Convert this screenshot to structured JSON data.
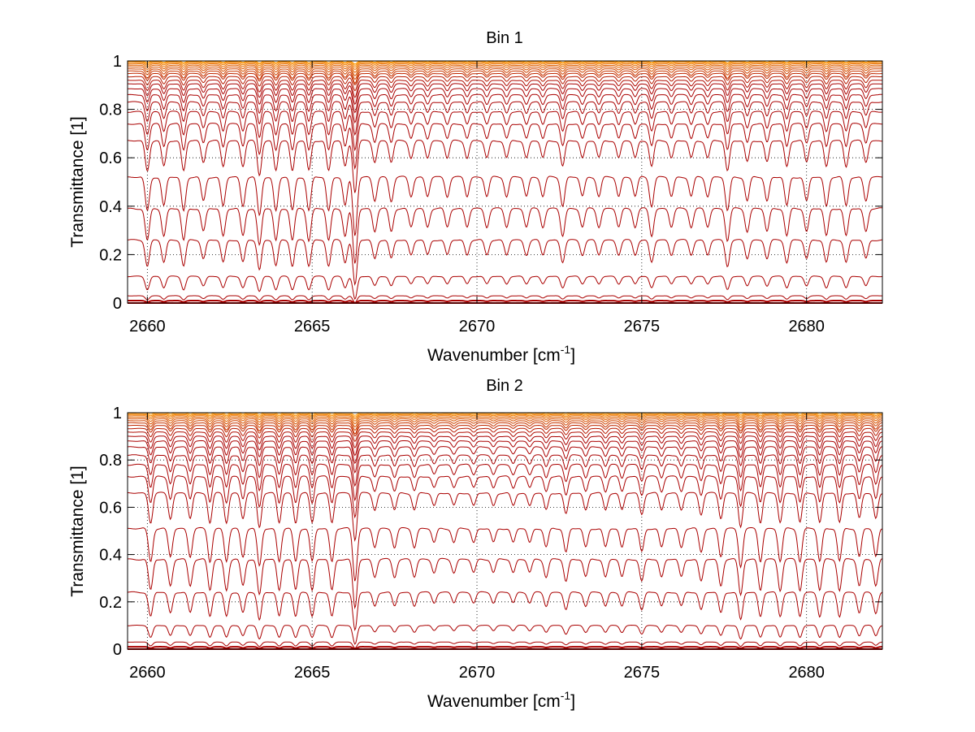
{
  "chart_data": [
    {
      "type": "line",
      "title": "Bin 1",
      "xlabel": "Wavenumber [cm",
      "xlabel_sup": "-1",
      "xlabel_close": "]",
      "ylabel": "Transmittance [1]",
      "xlim": [
        2659.4,
        2682.3
      ],
      "ylim": [
        0,
        1
      ],
      "xticks": [
        2660,
        2665,
        2670,
        2675,
        2680
      ],
      "xtick_labels": [
        "2660",
        "2665",
        "2670",
        "2675",
        "2680"
      ],
      "yticks": [
        0,
        0.2,
        0.4,
        0.6,
        0.8,
        1
      ],
      "ytick_labels": [
        "0",
        "0.2",
        "0.4",
        "0.6",
        "0.8",
        "1"
      ],
      "grid": "dotted",
      "series_description": "family of transmittance spectra, deep red (optically thick) to orange/yellow near 1",
      "series_baselines": [
        0.0,
        0.01,
        0.03,
        0.11,
        0.26,
        0.39,
        0.52,
        0.67,
        0.74,
        0.79,
        0.83,
        0.86,
        0.885,
        0.905,
        0.92,
        0.935,
        0.948,
        0.958,
        0.967,
        0.975,
        0.982,
        0.988,
        0.993,
        0.997,
        1.0
      ],
      "absorption_lines": [
        {
          "x": 2660.0,
          "depth": 0.35
        },
        {
          "x": 2660.5,
          "depth": 0.3
        },
        {
          "x": 2661.1,
          "depth": 0.35
        },
        {
          "x": 2661.7,
          "depth": 0.25
        },
        {
          "x": 2662.3,
          "depth": 0.3
        },
        {
          "x": 2662.9,
          "depth": 0.3
        },
        {
          "x": 2663.4,
          "depth": 0.4
        },
        {
          "x": 2663.9,
          "depth": 0.35
        },
        {
          "x": 2664.4,
          "depth": 0.35
        },
        {
          "x": 2664.9,
          "depth": 0.35
        },
        {
          "x": 2665.5,
          "depth": 0.35
        },
        {
          "x": 2666.0,
          "depth": 0.3
        },
        {
          "x": 2666.3,
          "depth": 0.6
        },
        {
          "x": 2666.9,
          "depth": 0.25
        },
        {
          "x": 2667.4,
          "depth": 0.25
        },
        {
          "x": 2668.0,
          "depth": 0.2
        },
        {
          "x": 2668.5,
          "depth": 0.2
        },
        {
          "x": 2669.1,
          "depth": 0.2
        },
        {
          "x": 2669.7,
          "depth": 0.2
        },
        {
          "x": 2670.3,
          "depth": 0.2
        },
        {
          "x": 2670.9,
          "depth": 0.2
        },
        {
          "x": 2671.5,
          "depth": 0.2
        },
        {
          "x": 2672.0,
          "depth": 0.2
        },
        {
          "x": 2672.6,
          "depth": 0.3
        },
        {
          "x": 2673.2,
          "depth": 0.2
        },
        {
          "x": 2673.7,
          "depth": 0.2
        },
        {
          "x": 2674.3,
          "depth": 0.2
        },
        {
          "x": 2674.8,
          "depth": 0.2
        },
        {
          "x": 2675.3,
          "depth": 0.3
        },
        {
          "x": 2675.9,
          "depth": 0.2
        },
        {
          "x": 2676.5,
          "depth": 0.2
        },
        {
          "x": 2677.0,
          "depth": 0.2
        },
        {
          "x": 2677.6,
          "depth": 0.35
        },
        {
          "x": 2678.2,
          "depth": 0.25
        },
        {
          "x": 2678.8,
          "depth": 0.25
        },
        {
          "x": 2679.4,
          "depth": 0.3
        },
        {
          "x": 2680.0,
          "depth": 0.25
        },
        {
          "x": 2680.6,
          "depth": 0.3
        },
        {
          "x": 2681.2,
          "depth": 0.3
        },
        {
          "x": 2681.8,
          "depth": 0.25
        }
      ],
      "color_dark": "#aa0000",
      "color_light": "#ff9900"
    },
    {
      "type": "line",
      "title": "Bin 2",
      "xlabel": "Wavenumber [cm",
      "xlabel_sup": "-1",
      "xlabel_close": "]",
      "ylabel": "Transmittance [1]",
      "xlim": [
        2659.4,
        2682.3
      ],
      "ylim": [
        0,
        1
      ],
      "xticks": [
        2660,
        2665,
        2670,
        2675,
        2680
      ],
      "xtick_labels": [
        "2660",
        "2665",
        "2670",
        "2675",
        "2680"
      ],
      "yticks": [
        0,
        0.2,
        0.4,
        0.6,
        0.8,
        1
      ],
      "ytick_labels": [
        "0",
        "0.2",
        "0.4",
        "0.6",
        "0.8",
        "1"
      ],
      "grid": "dotted",
      "series_description": "family of transmittance spectra, deep red (optically thick) to orange/yellow near 1",
      "series_baselines": [
        0.0,
        0.01,
        0.03,
        0.1,
        0.24,
        0.38,
        0.51,
        0.66,
        0.73,
        0.78,
        0.82,
        0.855,
        0.88,
        0.9,
        0.918,
        0.933,
        0.946,
        0.957,
        0.966,
        0.974,
        0.981,
        0.987,
        0.992,
        0.996,
        1.0
      ],
      "absorption_lines": [
        {
          "x": 2660.1,
          "depth": 0.35
        },
        {
          "x": 2660.7,
          "depth": 0.3
        },
        {
          "x": 2661.3,
          "depth": 0.3
        },
        {
          "x": 2661.9,
          "depth": 0.35
        },
        {
          "x": 2662.4,
          "depth": 0.35
        },
        {
          "x": 2662.9,
          "depth": 0.3
        },
        {
          "x": 2663.4,
          "depth": 0.4
        },
        {
          "x": 2664.0,
          "depth": 0.35
        },
        {
          "x": 2664.5,
          "depth": 0.35
        },
        {
          "x": 2665.0,
          "depth": 0.35
        },
        {
          "x": 2665.6,
          "depth": 0.35
        },
        {
          "x": 2666.3,
          "depth": 0.55
        },
        {
          "x": 2666.9,
          "depth": 0.2
        },
        {
          "x": 2667.5,
          "depth": 0.2
        },
        {
          "x": 2668.1,
          "depth": 0.2
        },
        {
          "x": 2668.7,
          "depth": 0.15
        },
        {
          "x": 2669.3,
          "depth": 0.15
        },
        {
          "x": 2669.9,
          "depth": 0.15
        },
        {
          "x": 2670.5,
          "depth": 0.15
        },
        {
          "x": 2671.1,
          "depth": 0.15
        },
        {
          "x": 2671.6,
          "depth": 0.15
        },
        {
          "x": 2672.1,
          "depth": 0.2
        },
        {
          "x": 2672.7,
          "depth": 0.25
        },
        {
          "x": 2673.3,
          "depth": 0.2
        },
        {
          "x": 2673.9,
          "depth": 0.2
        },
        {
          "x": 2674.4,
          "depth": 0.2
        },
        {
          "x": 2675.0,
          "depth": 0.25
        },
        {
          "x": 2675.6,
          "depth": 0.2
        },
        {
          "x": 2676.2,
          "depth": 0.2
        },
        {
          "x": 2676.8,
          "depth": 0.25
        },
        {
          "x": 2677.4,
          "depth": 0.3
        },
        {
          "x": 2678.0,
          "depth": 0.4
        },
        {
          "x": 2678.6,
          "depth": 0.35
        },
        {
          "x": 2679.2,
          "depth": 0.35
        },
        {
          "x": 2679.8,
          "depth": 0.35
        },
        {
          "x": 2680.4,
          "depth": 0.35
        },
        {
          "x": 2681.0,
          "depth": 0.35
        },
        {
          "x": 2681.6,
          "depth": 0.3
        },
        {
          "x": 2682.1,
          "depth": 0.3
        }
      ],
      "color_dark": "#aa0000",
      "color_light": "#ff9900"
    }
  ]
}
